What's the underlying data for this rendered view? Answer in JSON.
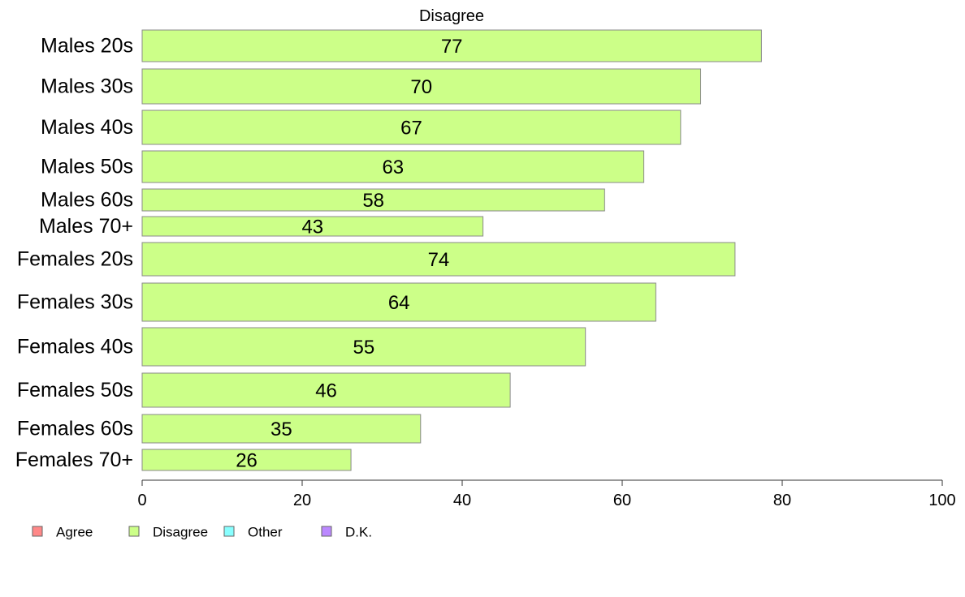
{
  "chart_data": {
    "type": "bar",
    "orientation": "horizontal",
    "title": "Disagree",
    "categories": [
      "Males 20s",
      "Males 30s",
      "Males 40s",
      "Males 50s",
      "Males 60s",
      "Males 70+",
      "Females 20s",
      "Females 30s",
      "Females 40s",
      "Females 50s",
      "Females 60s",
      "Females 70+"
    ],
    "values": [
      77.4,
      69.8,
      67.3,
      62.7,
      57.8,
      42.6,
      74.1,
      64.2,
      55.4,
      46.0,
      34.8,
      26.1
    ],
    "data_labels": [
      "77",
      "70",
      "67",
      "63",
      "58",
      "43",
      "74",
      "64",
      "55",
      "46",
      "35",
      "26"
    ],
    "xlim": [
      0,
      100
    ],
    "xticks": [
      0,
      20,
      40,
      60,
      80,
      100
    ],
    "grid": false,
    "bar_color": "#ccff88",
    "legend": {
      "placement": "bottom-left",
      "entries": [
        {
          "label": "Agree",
          "color": "#ff8888"
        },
        {
          "label": "Disagree",
          "color": "#ccff88"
        },
        {
          "label": "Other",
          "color": "#88ffff"
        },
        {
          "label": "D.K.",
          "color": "#bb88ff"
        }
      ]
    }
  }
}
